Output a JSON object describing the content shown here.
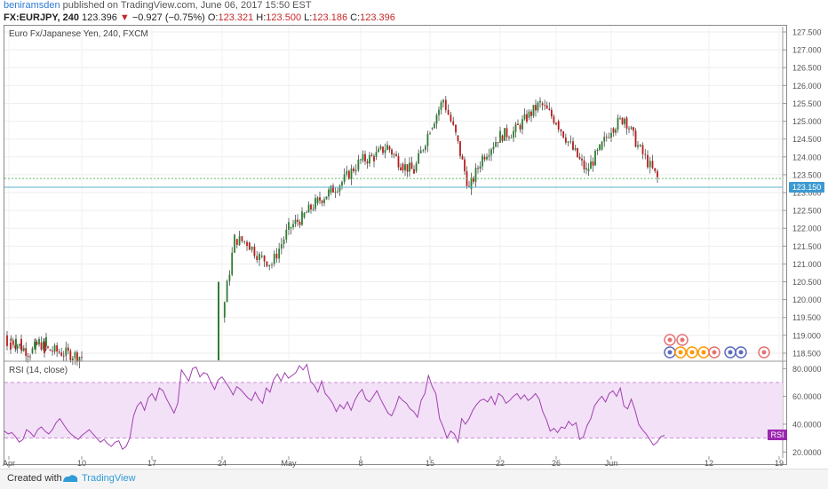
{
  "header": {
    "author": "beniramsden",
    "published_text": "published on TradingView.com, June 06, 2017 15:50 EST",
    "symbol": "FX:EURJPY, 240",
    "last": "123.396",
    "arrow": "▼",
    "change": "−0.927 (−0.75%)",
    "o_label": "O:",
    "o_value": "123.321",
    "h_label": "H:",
    "h_value": "123.500",
    "l_label": "L:",
    "l_value": "123.186",
    "c_label": "C:",
    "c_value": "123.396"
  },
  "footer": {
    "created_with": "Created with",
    "brand": "TradingView"
  },
  "colors": {
    "up": "#2e7d32",
    "down": "#b71c1c",
    "rsi_line": "#a040b0",
    "rsi_band": "#f3e1f7",
    "price_line": "#5ab0d0",
    "dotted_line": "#66bb6a",
    "rsi_badge": "#9c27b0",
    "price_badge": "#3d9ad1"
  },
  "chart_data": [
    {
      "type": "candlestick",
      "title": "Euro Fx/Japanese Yen, 240, FXCM",
      "ylim": [
        118.3,
        127.65
      ],
      "yticks": [
        "127.500",
        "127.000",
        "126.500",
        "126.000",
        "125.500",
        "125.000",
        "124.500",
        "124.000",
        "123.500",
        "123.000",
        "122.500",
        "122.000",
        "121.500",
        "121.000",
        "120.500",
        "120.000",
        "119.500",
        "119.000",
        "118.500"
      ],
      "x_ticks": [
        "Apr",
        "10",
        "17",
        "24",
        "May",
        "8",
        "15",
        "22",
        "26",
        "Jun",
        "12",
        "19"
      ],
      "current_price_label": "123.150",
      "current_price": 123.15,
      "last_close_line": 123.396,
      "close_path": [
        {
          "date": "Apr 3",
          "close": 118.9
        },
        {
          "date": "Apr 4",
          "close": 118.7
        },
        {
          "date": "Apr 5",
          "close": 118.5
        },
        {
          "date": "Apr 6",
          "close": 118.8
        },
        {
          "date": "Apr 7",
          "close": 118.6
        },
        {
          "date": "Apr 10",
          "close": 118.4
        },
        {
          "date": "Apr 24",
          "close": 119.5
        },
        {
          "date": "Apr 25",
          "close": 121.7
        },
        {
          "date": "Apr 26",
          "close": 121.6
        },
        {
          "date": "Apr 27",
          "close": 121.2
        },
        {
          "date": "Apr 28",
          "close": 121.0
        },
        {
          "date": "May 1",
          "close": 122.0
        },
        {
          "date": "May 2",
          "close": 122.3
        },
        {
          "date": "May 3",
          "close": 122.7
        },
        {
          "date": "May 4",
          "close": 123.0
        },
        {
          "date": "May 5",
          "close": 123.3
        },
        {
          "date": "May 8",
          "close": 123.9
        },
        {
          "date": "May 9",
          "close": 124.0
        },
        {
          "date": "May 10",
          "close": 124.3
        },
        {
          "date": "May 11",
          "close": 123.8
        },
        {
          "date": "May 12",
          "close": 123.6
        },
        {
          "date": "May 15",
          "close": 124.8
        },
        {
          "date": "May 16",
          "close": 125.6
        },
        {
          "date": "May 17",
          "close": 124.6
        },
        {
          "date": "May 18",
          "close": 123.1
        },
        {
          "date": "May 19",
          "close": 124.0
        },
        {
          "date": "May 22",
          "close": 124.6
        },
        {
          "date": "May 23",
          "close": 124.7
        },
        {
          "date": "May 24",
          "close": 125.1
        },
        {
          "date": "May 25",
          "close": 125.5
        },
        {
          "date": "May 26",
          "close": 125.0
        },
        {
          "date": "May 29",
          "close": 124.2
        },
        {
          "date": "May 30",
          "close": 123.6
        },
        {
          "date": "May 31",
          "close": 124.2
        },
        {
          "date": "Jun 1",
          "close": 124.8
        },
        {
          "date": "Jun 2",
          "close": 125.1
        },
        {
          "date": "Jun 5",
          "close": 124.3
        },
        {
          "date": "Jun 6",
          "close": 123.4
        }
      ]
    },
    {
      "type": "line",
      "title": "RSI (14, close)",
      "badge": "RSI",
      "ylim": [
        17,
        84
      ],
      "yticks": [
        "80.0000",
        "60.0000",
        "40.0000",
        "20.0000"
      ],
      "band": [
        30,
        70
      ],
      "values": [
        35,
        33,
        34,
        31,
        27,
        29,
        36,
        34,
        31,
        36,
        38,
        35,
        33,
        36,
        41,
        44,
        40,
        36,
        33,
        31,
        29,
        32,
        34,
        36,
        33,
        30,
        27,
        29,
        26,
        24,
        27,
        28,
        22,
        24,
        30,
        46,
        53,
        56,
        50,
        59,
        62,
        57,
        66,
        64,
        58,
        53,
        48,
        55,
        79,
        75,
        71,
        80,
        81,
        74,
        77,
        76,
        70,
        65,
        72,
        74,
        70,
        66,
        61,
        67,
        65,
        62,
        59,
        57,
        63,
        58,
        55,
        66,
        63,
        72,
        76,
        71,
        77,
        73,
        75,
        77,
        82,
        79,
        83,
        71,
        68,
        63,
        71,
        62,
        59,
        55,
        49,
        54,
        51,
        56,
        50,
        57,
        62,
        65,
        58,
        56,
        60,
        64,
        58,
        53,
        48,
        46,
        52,
        60,
        57,
        55,
        51,
        49,
        45,
        57,
        62,
        75,
        67,
        62,
        44,
        38,
        30,
        35,
        33,
        27,
        44,
        40,
        44,
        50,
        54,
        57,
        58,
        56,
        60,
        54,
        62,
        60,
        55,
        57,
        60,
        62,
        58,
        61,
        57,
        59,
        62,
        58,
        49,
        43,
        35,
        37,
        34,
        38,
        37,
        42,
        39,
        41,
        29,
        31,
        39,
        44,
        53,
        57,
        60,
        56,
        62,
        64,
        60,
        66,
        53,
        51,
        58,
        50,
        40,
        36,
        33,
        29,
        25,
        27,
        31,
        32
      ]
    }
  ]
}
